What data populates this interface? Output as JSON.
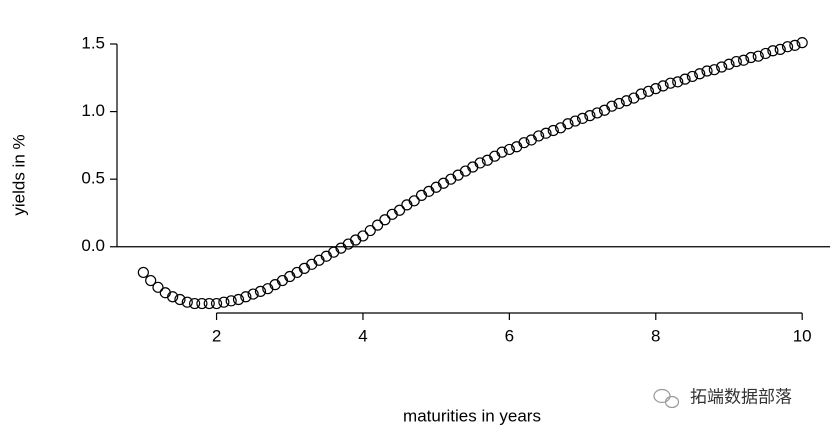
{
  "chart_data": {
    "type": "scatter",
    "xlabel": "maturities in years",
    "ylabel": "yields in %",
    "watermark": "拓端数据部落",
    "x": [
      1.0,
      1.1,
      1.2,
      1.3,
      1.4,
      1.5,
      1.6,
      1.7,
      1.8,
      1.9,
      2.0,
      2.1,
      2.2,
      2.3,
      2.4,
      2.5,
      2.6,
      2.7,
      2.8,
      2.9,
      3.0,
      3.1,
      3.2,
      3.3,
      3.4,
      3.5,
      3.6,
      3.7,
      3.8,
      3.9,
      4.0,
      4.1,
      4.2,
      4.3,
      4.4,
      4.5,
      4.6,
      4.7,
      4.8,
      4.9,
      5.0,
      5.1,
      5.2,
      5.3,
      5.4,
      5.5,
      5.6,
      5.7,
      5.8,
      5.9,
      6.0,
      6.1,
      6.2,
      6.3,
      6.4,
      6.5,
      6.6,
      6.7,
      6.8,
      6.9,
      7.0,
      7.1,
      7.2,
      7.3,
      7.4,
      7.5,
      7.6,
      7.7,
      7.8,
      7.9,
      8.0,
      8.1,
      8.2,
      8.3,
      8.4,
      8.5,
      8.6,
      8.7,
      8.8,
      8.9,
      9.0,
      9.1,
      9.2,
      9.3,
      9.4,
      9.5,
      9.6,
      9.7,
      9.8,
      9.9,
      10.0
    ],
    "values": [
      -0.19,
      -0.25,
      -0.3,
      -0.34,
      -0.37,
      -0.39,
      -0.41,
      -0.42,
      -0.42,
      -0.42,
      -0.42,
      -0.41,
      -0.4,
      -0.39,
      -0.37,
      -0.35,
      -0.33,
      -0.31,
      -0.28,
      -0.25,
      -0.22,
      -0.19,
      -0.16,
      -0.13,
      -0.1,
      -0.07,
      -0.04,
      -0.01,
      0.02,
      0.05,
      0.08,
      0.12,
      0.16,
      0.2,
      0.24,
      0.27,
      0.31,
      0.34,
      0.38,
      0.41,
      0.44,
      0.47,
      0.5,
      0.53,
      0.56,
      0.59,
      0.62,
      0.64,
      0.67,
      0.7,
      0.72,
      0.74,
      0.77,
      0.79,
      0.82,
      0.84,
      0.86,
      0.88,
      0.91,
      0.93,
      0.95,
      0.97,
      0.99,
      1.01,
      1.04,
      1.06,
      1.08,
      1.1,
      1.13,
      1.15,
      1.17,
      1.19,
      1.21,
      1.22,
      1.24,
      1.26,
      1.28,
      1.3,
      1.31,
      1.33,
      1.35,
      1.37,
      1.38,
      1.4,
      1.41,
      1.43,
      1.45,
      1.46,
      1.48,
      1.49,
      1.51
    ],
    "color": "#000000",
    "reference_line": 0,
    "xlim": [
      0.64,
      10.38
    ],
    "xticks": [
      2,
      4,
      6,
      8,
      10
    ],
    "ylim": [
      -0.49,
      1.5
    ],
    "yticks": [
      {
        "value": 0,
        "label": "0.0"
      },
      {
        "value": 0.5,
        "label": "0.5"
      },
      {
        "value": 1,
        "label": "1.0"
      },
      {
        "value": 1.5,
        "label": "1.5"
      }
    ]
  }
}
